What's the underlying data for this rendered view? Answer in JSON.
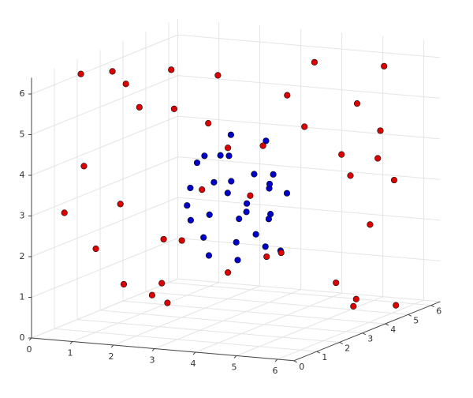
{
  "chart_data": {
    "type": "scatter3d",
    "xlim": [
      0,
      6.4
    ],
    "ylim": [
      0,
      6.4
    ],
    "zlim": [
      0,
      6.4
    ],
    "xticks": [
      0,
      1,
      2,
      3,
      4,
      5,
      6
    ],
    "yticks": [
      0,
      1,
      2,
      3,
      4,
      5,
      6
    ],
    "zticks": [
      0,
      1,
      2,
      3,
      4,
      5,
      6
    ],
    "grid": true,
    "series": [
      {
        "color": "#0000c8",
        "x": [
          3.0,
          3.5,
          2.6,
          3.8,
          3.2,
          2.4,
          4.0,
          3.1,
          2.9,
          3.6,
          2.2,
          4.2,
          3.3,
          2.7,
          3.9,
          3.4,
          2.5,
          3.7,
          2.8,
          4.1,
          3.0,
          3.5,
          2.3,
          3.8,
          3.2,
          2.6,
          4.0,
          3.3,
          2.1,
          3.6
        ],
        "y": [
          3.2,
          2.8,
          3.6,
          3.0,
          4.0,
          2.5,
          3.4,
          2.2,
          4.2,
          3.8,
          3.0,
          2.7,
          3.5,
          2.4,
          3.9,
          4.3,
          3.3,
          2.1,
          3.7,
          3.1,
          2.6,
          4.1,
          3.4,
          3.6,
          2.9,
          2.3,
          4.0,
          3.1,
          3.8,
          2.5
        ],
        "z": [
          3.1,
          2.6,
          3.9,
          2.2,
          3.4,
          2.9,
          3.6,
          1.8,
          2.4,
          4.3,
          3.2,
          2.0,
          2.8,
          4.0,
          1.6,
          3.0,
          2.5,
          3.7,
          4.4,
          2.7,
          3.5,
          2.3,
          1.9,
          3.3,
          4.1,
          2.6,
          3.0,
          1.5,
          3.8,
          2.1
        ]
      },
      {
        "color": "#dc0000",
        "x": [
          0.3,
          5.9,
          1.0,
          5.5,
          0.6,
          6.1,
          2.0,
          4.8,
          0.2,
          6.0,
          1.5,
          5.2,
          0.8,
          5.7,
          3.0,
          3.5,
          0.4,
          6.2,
          1.2,
          5.0,
          2.5,
          4.2,
          0.9,
          5.8,
          1.8,
          4.6,
          0.5,
          6.0,
          3.2,
          2.8,
          1.1,
          5.4,
          0.7,
          5.6,
          2.2,
          4.4,
          0.3,
          6.1,
          1.4,
          5.1
        ],
        "y": [
          3.0,
          3.5,
          0.5,
          6.0,
          5.5,
          1.0,
          0.3,
          6.2,
          1.8,
          4.5,
          5.9,
          0.8,
          2.6,
          5.2,
          0.4,
          6.1,
          4.0,
          2.2,
          6.0,
          0.6,
          5.8,
          0.2,
          1.2,
          3.8,
          0.9,
          5.7,
          4.8,
          2.8,
          0.5,
          5.9,
          3.3,
          1.5,
          6.2,
          4.2,
          2.0,
          0.7,
          0.9,
          5.0,
          3.6,
          6.0
        ],
        "z": [
          5.9,
          0.5,
          4.2,
          3.0,
          1.2,
          5.5,
          3.4,
          1.8,
          6.1,
          4.6,
          0.4,
          5.0,
          0.8,
          6.0,
          2.6,
          5.7,
          4.8,
          1.4,
          5.2,
          3.8,
          0.9,
          5.6,
          2.0,
          0.6,
          6.2,
          3.1,
          0.3,
          4.4,
          5.8,
          1.0,
          0.4,
          6.1,
          2.3,
          5.3,
          0.6,
          4.9,
          2.9,
          0.2,
          5.9,
          3.5
        ]
      }
    ]
  }
}
